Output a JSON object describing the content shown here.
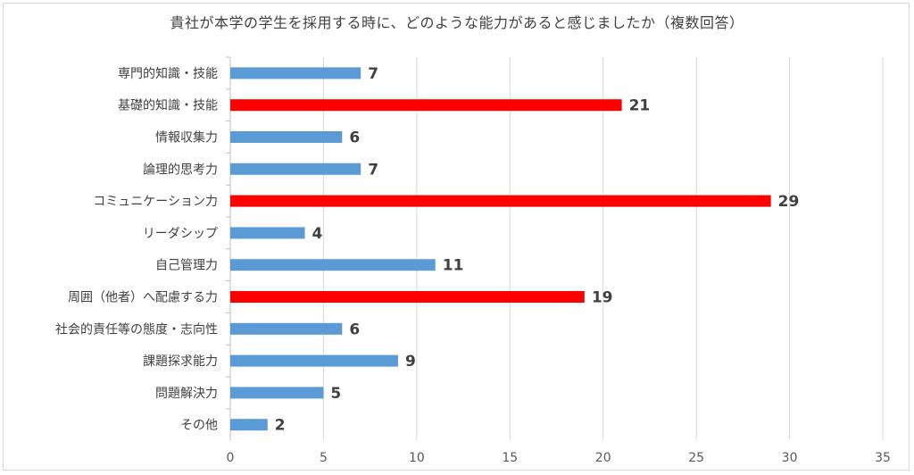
{
  "chart_data": {
    "type": "bar",
    "orientation": "horizontal",
    "title": "貴社が本学の学生を採用する時に、どのような能力があると感じましたか（複数回答）",
    "categories": [
      "専門的知識・技能",
      "基礎的知識・技能",
      "情報収集力",
      "論理的思考力",
      "コミュニケーション力",
      "リーダシップ",
      "自己管理力",
      "周囲（他者）へ配慮する力",
      "社会的責任等の態度・志向性",
      "課題探求能力",
      "問題解決力",
      "その他"
    ],
    "values": [
      7,
      21,
      6,
      7,
      29,
      4,
      11,
      19,
      6,
      9,
      5,
      2
    ],
    "highlighted": [
      false,
      true,
      false,
      false,
      true,
      false,
      false,
      true,
      false,
      false,
      false,
      false
    ],
    "xlim": [
      0,
      35
    ],
    "xticks": [
      "0",
      "5",
      "10",
      "15",
      "20",
      "25",
      "30",
      "35"
    ],
    "grid": "vertical",
    "xlabel": "",
    "ylabel": "",
    "colors": {
      "default": "#5b9bd5",
      "highlight": "#ff0000",
      "grid": "#d9d9d9"
    }
  }
}
